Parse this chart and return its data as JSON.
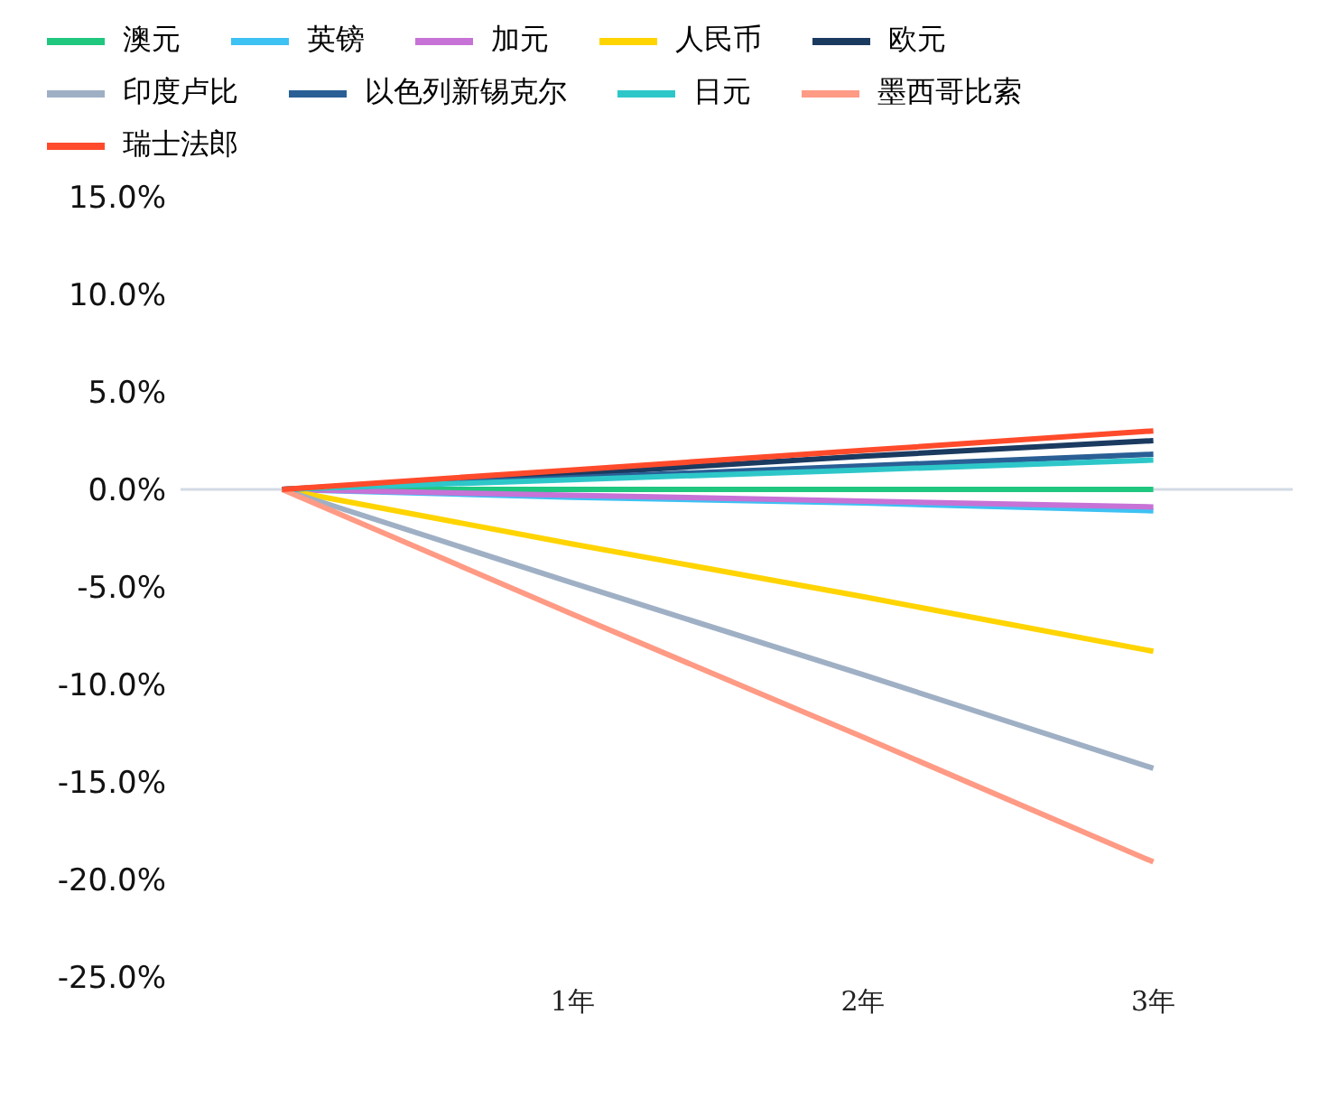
{
  "chart_data": {
    "type": "line",
    "categories": [
      null,
      "1年",
      "2年",
      "3年"
    ],
    "series": [
      {
        "name": "澳元",
        "color": "#1fc77f",
        "values": [
          0,
          0,
          0,
          0
        ]
      },
      {
        "name": "英镑",
        "color": "#3ec1f3",
        "values": [
          0,
          -0.4,
          -0.7,
          -1.1
        ]
      },
      {
        "name": "加元",
        "color": "#c772d6",
        "values": [
          0,
          -0.3,
          -0.6,
          -0.9
        ]
      },
      {
        "name": "人民币",
        "color": "#ffd400",
        "values": [
          0,
          -2.8,
          -5.5,
          -8.3
        ]
      },
      {
        "name": "欧元",
        "color": "#1b3a60",
        "values": [
          0,
          0.8,
          1.7,
          2.5
        ]
      },
      {
        "name": "印度卢比",
        "color": "#9fb0c5",
        "values": [
          0,
          -4.8,
          -9.5,
          -14.3
        ]
      },
      {
        "name": "以色列新锡克尔",
        "color": "#2a5f95",
        "values": [
          0,
          0.6,
          1.2,
          1.8
        ]
      },
      {
        "name": "日元",
        "color": "#2ec7c9",
        "values": [
          0,
          0.5,
          1.0,
          1.5
        ]
      },
      {
        "name": "墨西哥比索",
        "color": "#ff9a85",
        "values": [
          0,
          -6.4,
          -12.7,
          -19.1
        ]
      },
      {
        "name": "瑞士法郎",
        "color": "#ff4b2b",
        "values": [
          0,
          1.0,
          2.0,
          3.0
        ]
      }
    ],
    "ylim": [
      -25,
      15
    ],
    "yticks": [
      {
        "value": -25,
        "label": "-25.0%"
      },
      {
        "value": -20,
        "label": "-20.0%"
      },
      {
        "value": -15,
        "label": "-15.0%"
      },
      {
        "value": -10,
        "label": "-10.0%"
      },
      {
        "value": -5,
        "label": "-5.0%"
      },
      {
        "value": 0,
        "label": "0.0%"
      },
      {
        "value": 5,
        "label": "5.0%"
      },
      {
        "value": 10,
        "label": "10.0%"
      },
      {
        "value": 15,
        "label": "15.0%"
      }
    ],
    "ref_lines": [
      {
        "axis": "y",
        "value": 0,
        "color": "#d3dbe5"
      }
    ],
    "legend": "top left",
    "grid": false,
    "marker": "none",
    "line_style": "solid"
  }
}
